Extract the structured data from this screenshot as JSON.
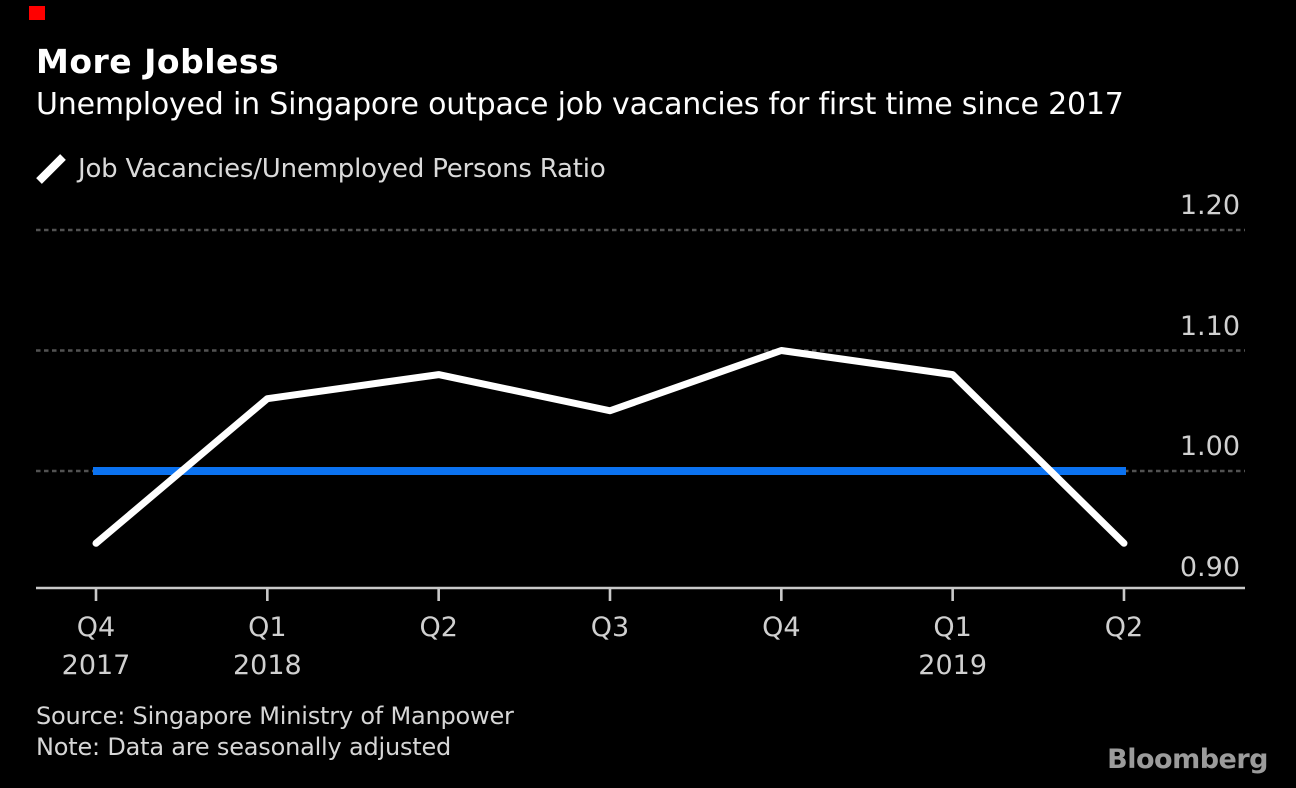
{
  "header": {
    "title": "More Jobless",
    "subtitle": "Unemployed in Singapore outpace job vacancies for first time since 2017"
  },
  "legend": {
    "label": "Job Vacancies/Unemployed Persons Ratio",
    "marker": "diagonal-line",
    "marker_color": "#ffffff"
  },
  "chart_data": {
    "type": "line",
    "title": "More Jobless",
    "subtitle": "Unemployed in Singapore outpace job vacancies for first time since 2017",
    "categories": [
      {
        "quarter": "Q4",
        "year": "2017"
      },
      {
        "quarter": "Q1",
        "year": "2018"
      },
      {
        "quarter": "Q2"
      },
      {
        "quarter": "Q3"
      },
      {
        "quarter": "Q4"
      },
      {
        "quarter": "Q1",
        "year": "2019"
      },
      {
        "quarter": "Q2"
      }
    ],
    "series": [
      {
        "name": "Job Vacancies/Unemployed Persons Ratio",
        "color": "#ffffff",
        "values": [
          0.94,
          1.06,
          1.08,
          1.05,
          1.1,
          1.08,
          0.94
        ]
      }
    ],
    "reference_line": {
      "value": 1.0,
      "color": "#0b72f0"
    },
    "y_ticks": [
      {
        "label": "1.20",
        "value": 1.2,
        "gridline": true
      },
      {
        "label": "1.10",
        "value": 1.1,
        "gridline": true
      },
      {
        "label": "1.00",
        "value": 1.0,
        "gridline": true
      },
      {
        "label": "0.90",
        "value": 0.9,
        "gridline": false
      }
    ],
    "ylim": [
      0.9,
      1.22
    ],
    "grid": "horizontal-dashed",
    "legend_position": "top-left",
    "colors": {
      "background": "#000000",
      "gridline": "#525252",
      "axis": "#c9c9c9",
      "tick_label": "#d0d0d0"
    }
  },
  "footer": {
    "source": "Source: Singapore Ministry of Manpower",
    "note": "Note: Data are seasonally adjusted",
    "logo": "Bloomberg"
  }
}
